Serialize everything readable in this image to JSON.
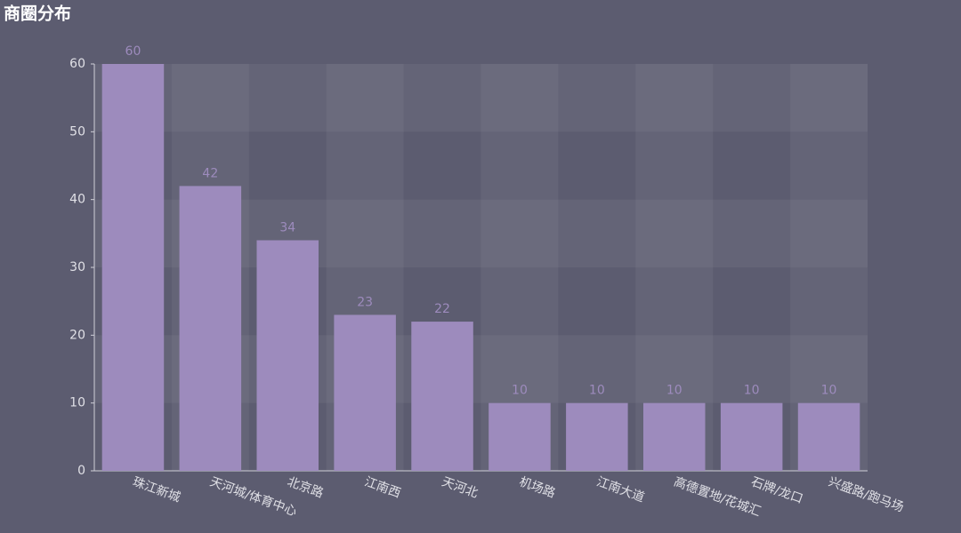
{
  "chart_data": {
    "type": "bar",
    "title": "商圈分布",
    "categories": [
      "珠江新城",
      "天河城/体育中心",
      "北京路",
      "江南西",
      "天河北",
      "机场路",
      "江南大道",
      "高德置地/花城汇",
      "石牌/龙口",
      "兴盛路/跑马场"
    ],
    "values": [
      60,
      42,
      34,
      23,
      22,
      10,
      10,
      10,
      10,
      10
    ],
    "color": "#9d8bbd",
    "ylim": [
      0,
      60
    ],
    "yticks": [
      0,
      10,
      20,
      30,
      40,
      50,
      60
    ],
    "grid": true
  }
}
